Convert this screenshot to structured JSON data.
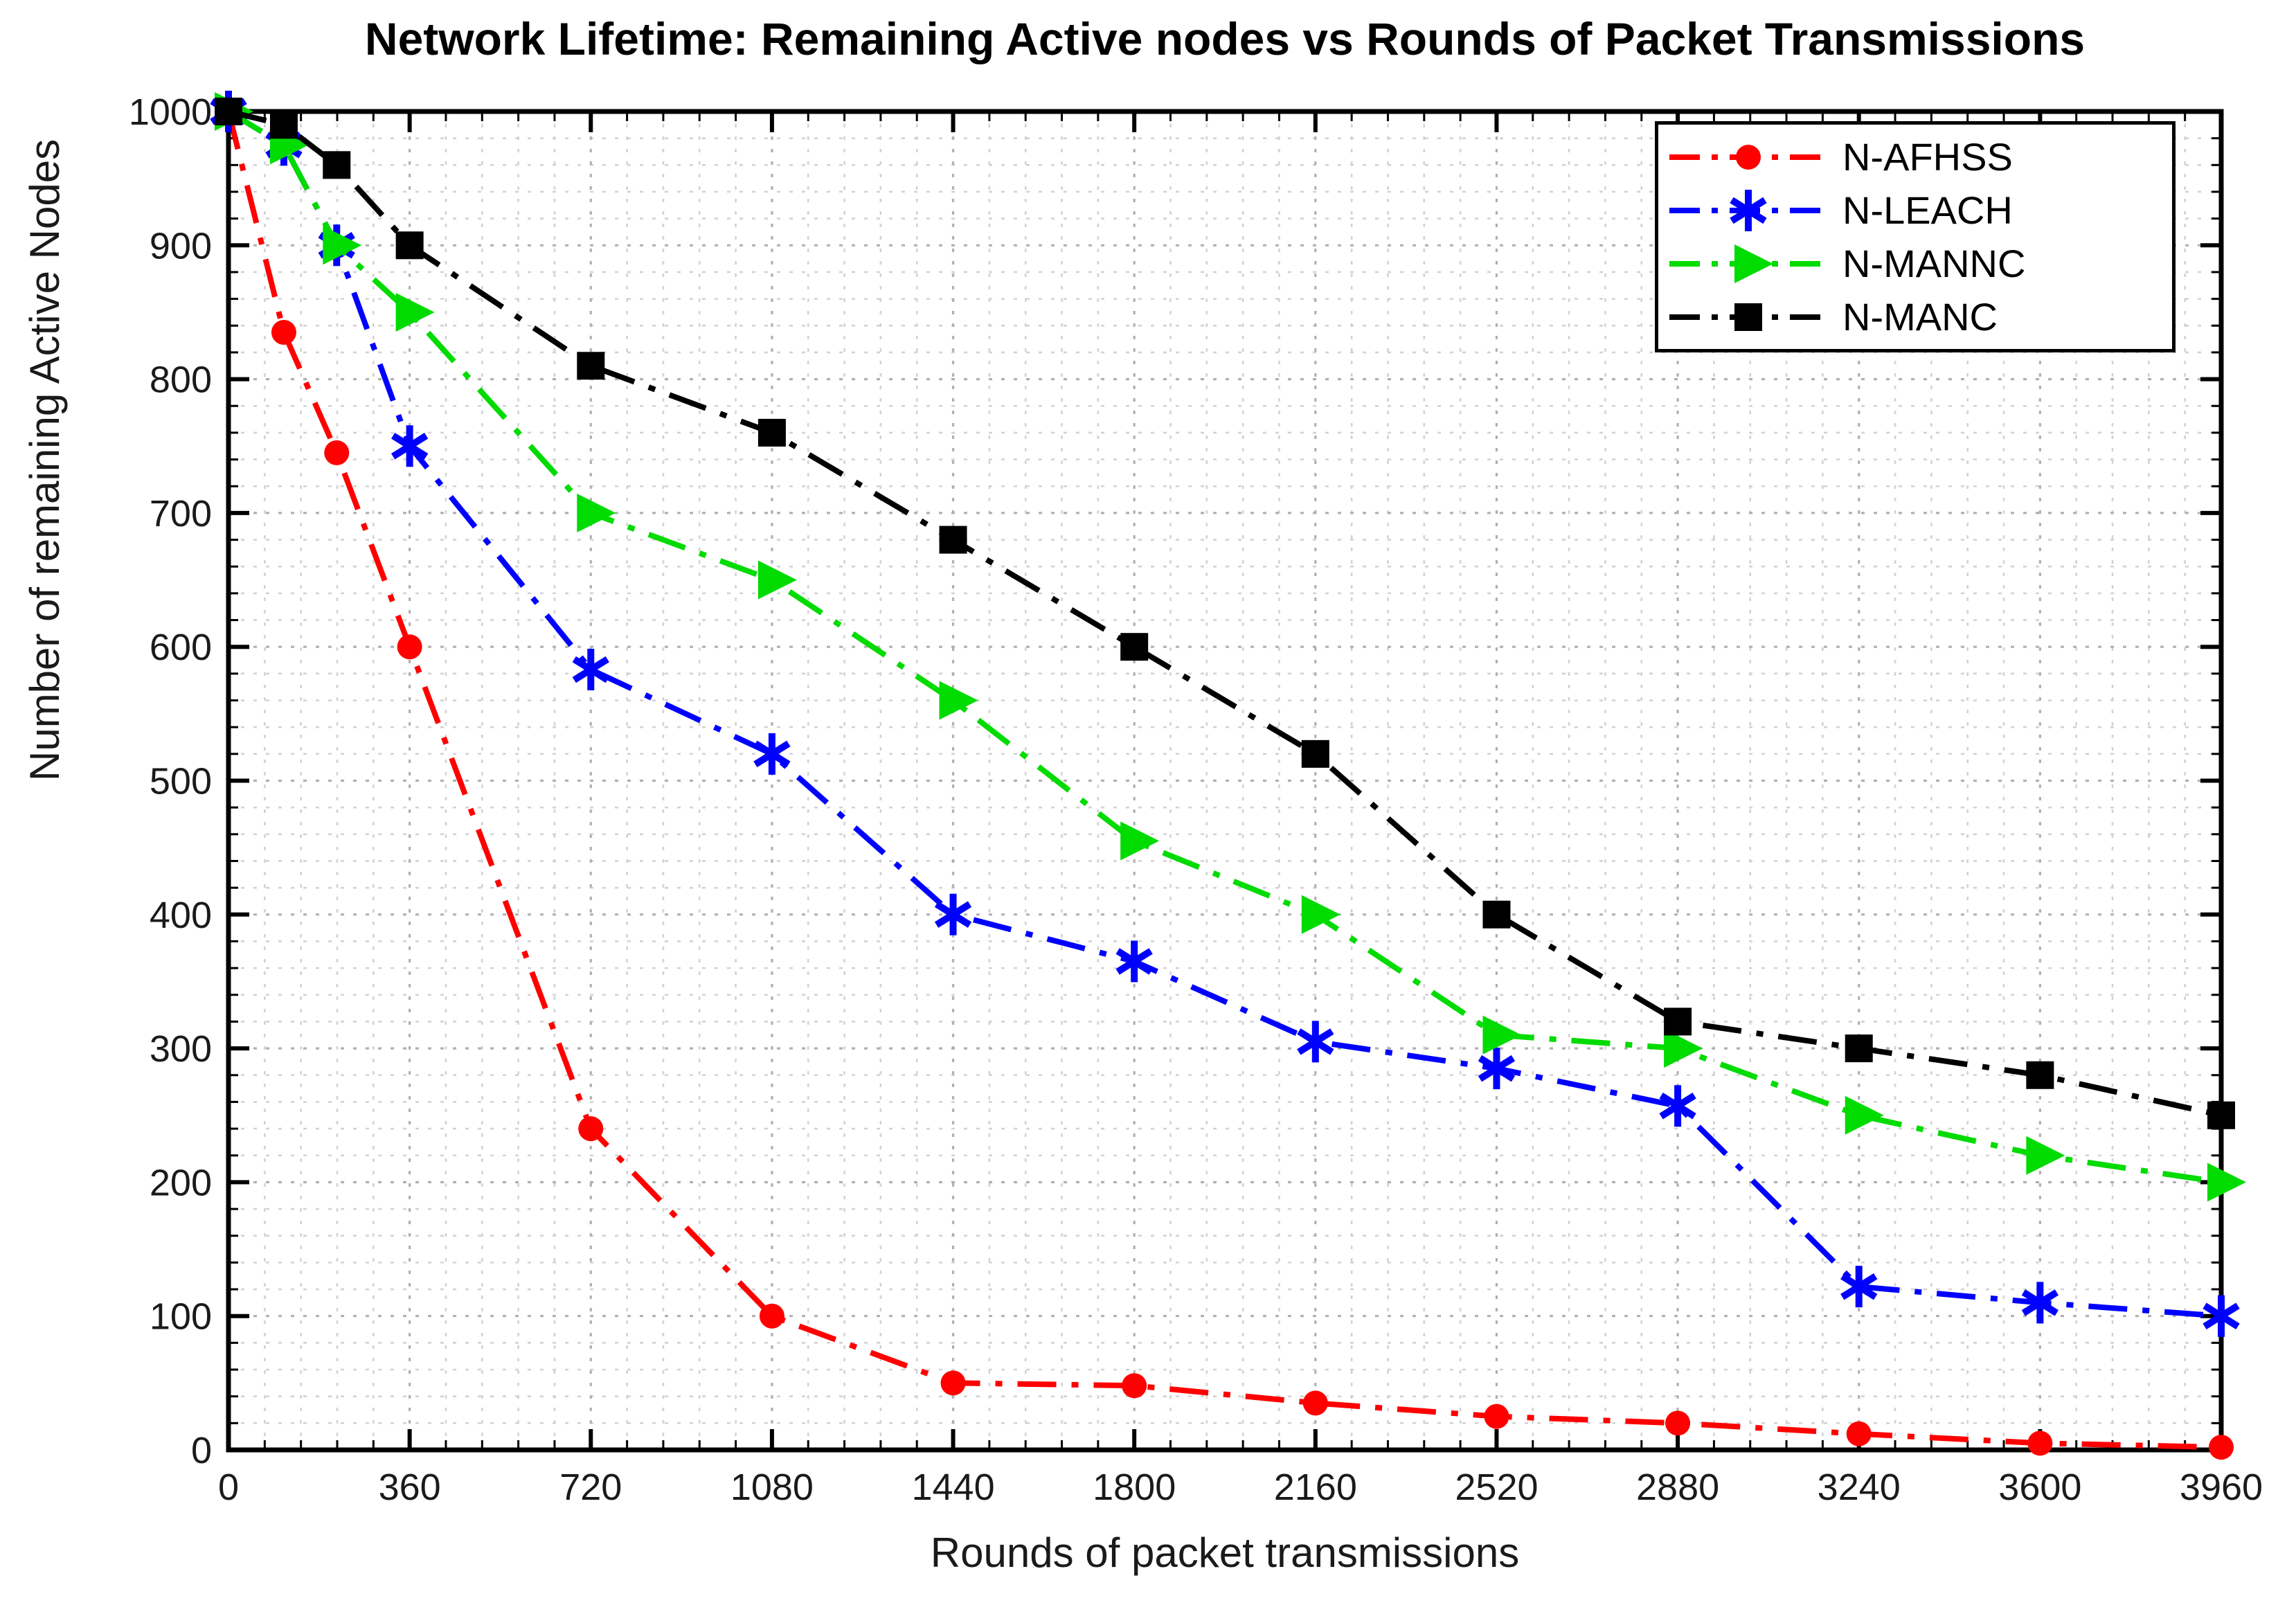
{
  "chart_data": {
    "type": "line",
    "title": "Network Lifetime: Remaining Active nodes vs Rounds of Packet Transmissions",
    "xlabel": "Rounds of packet transmissions",
    "ylabel": "Number of remaining Active Nodes",
    "xlim": [
      0,
      3960
    ],
    "ylim": [
      0,
      1000
    ],
    "x_ticks": [
      0,
      360,
      720,
      1080,
      1440,
      1800,
      2160,
      2520,
      2880,
      3240,
      3600,
      3960
    ],
    "y_ticks": [
      0,
      100,
      200,
      300,
      400,
      500,
      600,
      700,
      800,
      900,
      1000
    ],
    "x_minor_step": 72,
    "y_minor_step": 20,
    "grid": "major and minor dotted gray, box on, ticks inward",
    "legend_position": "top-right-inside",
    "x": [
      0,
      110,
      215,
      360,
      720,
      1080,
      1440,
      1800,
      2160,
      2520,
      2880,
      3240,
      3600,
      3960
    ],
    "series": [
      {
        "name": "N-AFHSS",
        "color": "#ff0000",
        "marker": "circle",
        "line_style": "dash-dot",
        "values": [
          1000,
          835,
          745,
          600,
          240,
          100,
          50,
          48,
          35,
          25,
          20,
          12,
          5,
          2
        ]
      },
      {
        "name": "N-LEACH",
        "color": "#0000ff",
        "marker": "asterisk",
        "line_style": "dash-dot",
        "values": [
          1000,
          975,
          900,
          750,
          583,
          520,
          400,
          365,
          305,
          285,
          257,
          122,
          110,
          100
        ]
      },
      {
        "name": "N-MANNC",
        "color": "#00db00",
        "marker": "triangle-right",
        "line_style": "dash-dot",
        "values": [
          1000,
          975,
          900,
          850,
          700,
          650,
          560,
          455,
          400,
          310,
          300,
          250,
          220,
          200
        ]
      },
      {
        "name": "N-MANC",
        "color": "#000000",
        "marker": "square",
        "line_style": "dash-dot",
        "values": [
          1000,
          990,
          960,
          900,
          810,
          760,
          680,
          600,
          520,
          400,
          320,
          300,
          280,
          250
        ]
      }
    ],
    "colors": {
      "axis": "#000000",
      "tick_label": "#1a1a1a",
      "grid_major": "#b0b0b0",
      "grid_minor": "#d2d2d2",
      "background": "#ffffff"
    }
  }
}
